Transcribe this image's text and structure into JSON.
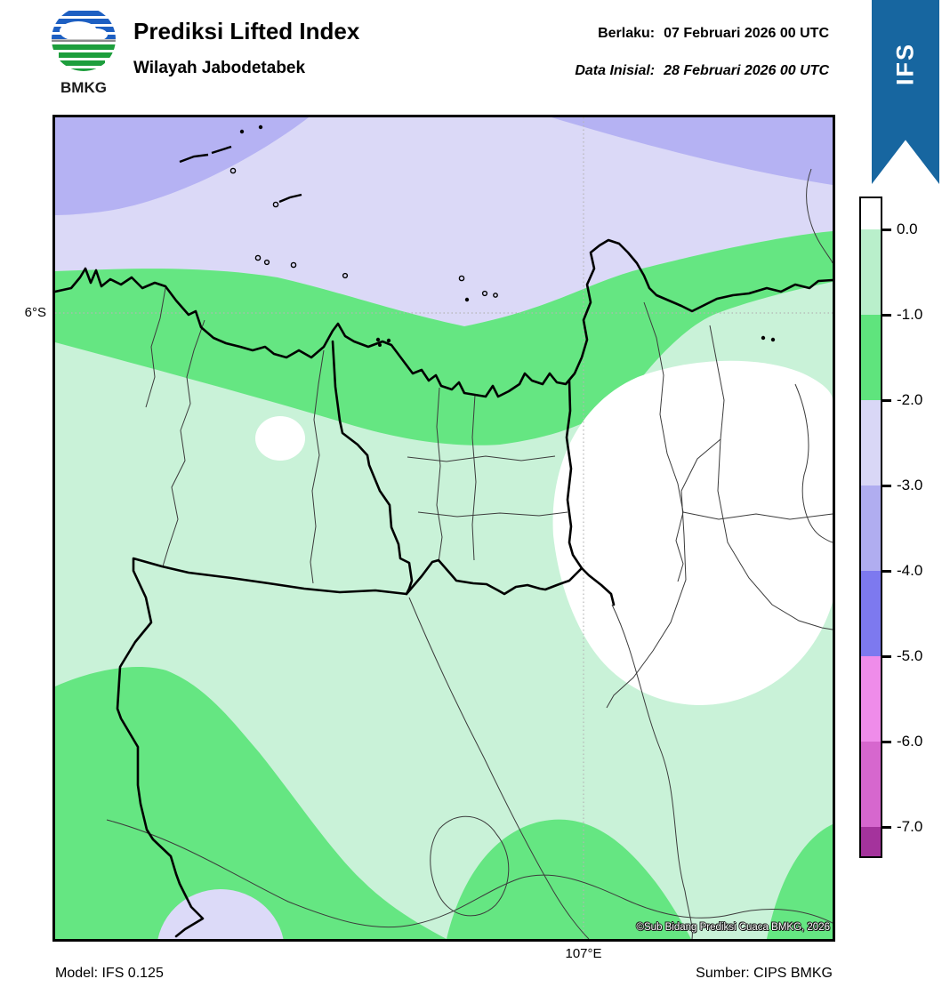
{
  "header": {
    "logo_text": "BMKG",
    "title": "Prediksi Lifted Index",
    "subtitle": "Wilayah Jabodetabek",
    "valid_label": "Berlaku:",
    "valid_value": "07 Februari 2026 00 UTC",
    "init_label": "Data Inisial:",
    "init_value": "28 Februari 2026 00 UTC",
    "ribbon_label": "IFS",
    "ribbon_color": "#1766a0"
  },
  "map": {
    "lat_label": "6°S",
    "lon_label": "107°E",
    "copyright": "©Sub Bidang Prediksi Cuaca BMKG, 2026",
    "colors": {
      "base_light_green": "#c9f2d8",
      "band_green": "#65e682",
      "sea_light_lavender": "#dbd9f7",
      "sea_dark_lavender": "#b5b2f3",
      "white_region": "#ffffff",
      "bottom_lavender": "#dcdaf8",
      "gridline": "#b5b5b5",
      "admin_line": "#3c3c3c",
      "coastline": "#000000",
      "province_line": "#000000"
    }
  },
  "colorbar": {
    "tick_labels": [
      "0.0",
      "-1.0",
      "-2.0",
      "-3.0",
      "-4.0",
      "-5.0",
      "-6.0",
      "-7.0"
    ],
    "segment_colors": [
      "#ffffff",
      "#b9efcb",
      "#5fe47d",
      "#d9d7f6",
      "#b0adf0",
      "#7d79ef",
      "#ef8cea",
      "#d667ce",
      "#a4339c"
    ]
  },
  "footer": {
    "model": "Model: IFS 0.125",
    "source": "Sumber: CIPS BMKG"
  },
  "logo_colors": {
    "blue": "#1d5fc2",
    "green": "#1d9e3c",
    "gray": "#8a8a8a"
  }
}
